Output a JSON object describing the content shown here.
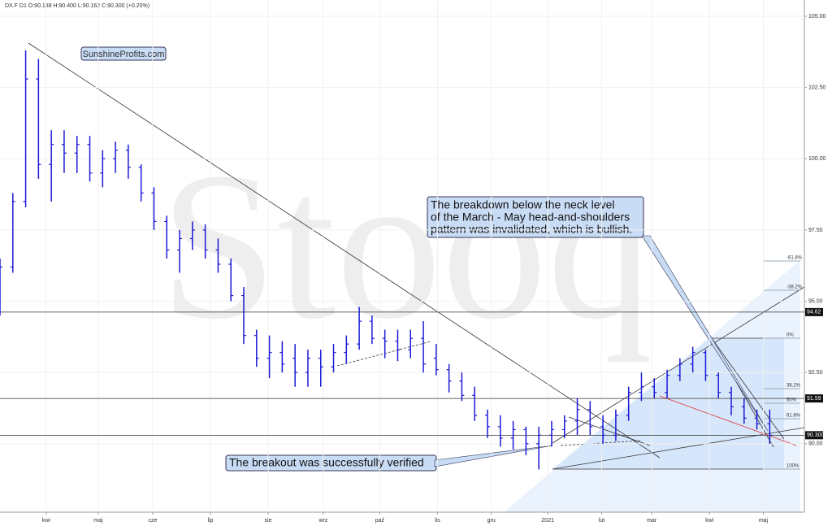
{
  "chart_data": {
    "type": "ohlc",
    "header": "DX.F  D1  O:90.188  H:90.400  L:90.162  C:90.300  (+0.20%)",
    "brand": "SunshineProfits.com",
    "watermark": "Stooq",
    "annotations": [
      "The breakdown below the neck level",
      "of the March - May head-and-shoulders",
      "pattern was invalidated, which is bullish.",
      "The breakout was successfully verified"
    ],
    "fib_labels": [
      "-61.8%",
      "-38.2%",
      "0%",
      "38.2%",
      "50%",
      "61.8%",
      "100%"
    ],
    "price_tags": [
      {
        "value": 94.62,
        "label": "94.62"
      },
      {
        "value": 91.59,
        "label": "91.59"
      },
      {
        "value": 90.3,
        "label": "90.300"
      }
    ],
    "color": "#1a1ad6",
    "x": [
      0,
      1,
      2,
      3,
      4,
      5,
      6,
      7,
      8,
      9,
      10,
      11,
      12,
      13,
      14,
      15,
      16,
      17,
      18,
      19,
      20,
      21,
      22,
      23,
      24,
      25,
      26,
      27,
      28,
      29,
      30,
      31,
      32,
      33,
      34,
      35,
      36,
      37,
      38,
      39,
      40,
      41,
      42,
      43,
      44,
      45,
      46,
      47,
      48,
      49,
      50,
      51,
      52,
      53,
      54,
      55,
      56,
      57,
      58,
      59,
      60
    ],
    "series": [
      {
        "name": "open",
        "values": [
          94.6,
          96.2,
          98.5,
          102.8,
          99.8,
          100.5,
          100.2,
          100.5,
          99.5,
          100,
          100.3,
          99.7,
          98.8,
          97.8,
          96.8,
          97.2,
          97.5,
          96.8,
          96.3,
          95.2,
          93.8,
          93,
          93.2,
          93,
          92.5,
          93,
          92.7,
          93.2,
          93.5,
          94.3,
          93.7,
          93.6,
          93.3,
          93.7,
          93,
          92.6,
          92.2,
          91.7,
          91,
          90.6,
          90.2,
          90.5,
          90,
          90.3,
          90.5,
          90.8,
          91.2,
          90.6,
          90.3,
          91,
          91.8,
          92,
          91.8,
          92.4,
          92.8,
          93.2,
          92.4,
          91.8,
          91.3,
          90.9,
          90.7
        ]
      },
      {
        "name": "high",
        "values": [
          96.5,
          98.8,
          103.8,
          103.5,
          101,
          101,
          100.8,
          100.8,
          100.3,
          100.6,
          100.5,
          99.8,
          99,
          98,
          97.5,
          97.8,
          97.7,
          97.2,
          96.5,
          95.5,
          94,
          93.8,
          93.6,
          93.5,
          93.3,
          93.3,
          93.5,
          93.8,
          94.8,
          94.5,
          94,
          94,
          94,
          94.3,
          93.5,
          92.8,
          92.5,
          92,
          91.2,
          91,
          90.8,
          90.6,
          90.6,
          90.8,
          91,
          91.6,
          91.5,
          91,
          91.2,
          92,
          92.5,
          92.3,
          92.6,
          93,
          93.4,
          93.3,
          92.5,
          92,
          91.6,
          91.2,
          91.2
        ]
      },
      {
        "name": "low",
        "values": [
          94.5,
          96,
          98.3,
          99.3,
          98.5,
          99.5,
          99.5,
          99.2,
          99,
          99.5,
          99.3,
          98.5,
          97.5,
          96.5,
          96,
          96.8,
          96.5,
          96,
          95,
          93.5,
          92.7,
          92.3,
          92.5,
          92,
          92,
          92,
          92.5,
          92.8,
          93.3,
          93.5,
          93,
          92.9,
          93,
          92.5,
          92.4,
          91.8,
          91.5,
          90.8,
          90.2,
          89.9,
          89.8,
          89.6,
          89.1,
          89.9,
          90.2,
          90.3,
          90.3,
          90,
          90.1,
          90.8,
          91.5,
          91.6,
          91.6,
          92.2,
          92.5,
          92.2,
          91.6,
          91,
          90.7,
          90.5,
          90
        ]
      },
      {
        "name": "close",
        "values": [
          96.2,
          98.5,
          102.8,
          99.8,
          100.5,
          100.2,
          100.5,
          99.5,
          100,
          100.3,
          99.7,
          98.8,
          97.8,
          96.8,
          97.2,
          97.5,
          96.8,
          96.3,
          95.2,
          93.8,
          93,
          93.2,
          92.8,
          92.5,
          93,
          92.7,
          93.2,
          93.5,
          94.3,
          93.7,
          93.6,
          93.3,
          93.7,
          92.8,
          92.6,
          92.2,
          91.7,
          91,
          90.6,
          90.2,
          90.5,
          90,
          90.3,
          90.5,
          90.8,
          91.2,
          90.6,
          90.3,
          91,
          91.8,
          92,
          91.8,
          92.4,
          92.8,
          93.2,
          92.4,
          91.8,
          91.3,
          90.9,
          90.7,
          90.3
        ]
      }
    ],
    "xlim": [
      0,
      62.7
    ],
    "xticks": [
      {
        "value": 3.6,
        "label": "kwi"
      },
      {
        "value": 7.66,
        "label": "maj"
      },
      {
        "value": 11.9,
        "label": "cze"
      },
      {
        "value": 16.4,
        "label": "lip"
      },
      {
        "value": 20.9,
        "label": "sie"
      },
      {
        "value": 25.2,
        "label": "wrz"
      },
      {
        "value": 29.6,
        "label": "paź"
      },
      {
        "value": 34.1,
        "label": "lis"
      },
      {
        "value": 38.3,
        "label": "gru"
      },
      {
        "value": 42.7,
        "label": "2021"
      },
      {
        "value": 46.9,
        "label": "lut"
      },
      {
        "value": 50.8,
        "label": "mar"
      },
      {
        "value": 55.3,
        "label": "kwi"
      },
      {
        "value": 59.5,
        "label": "maj"
      }
    ],
    "ylim": [
      87.6,
      105.57
    ],
    "yticks": [
      {
        "value": 90,
        "label": "90.00"
      },
      {
        "value": 92.5,
        "label": "92.50"
      },
      {
        "value": 95,
        "label": "95.00"
      },
      {
        "value": 97.5,
        "label": "97.50"
      },
      {
        "value": 100,
        "label": "100.00"
      },
      {
        "value": 102.5,
        "label": "102.50"
      },
      {
        "value": 105,
        "label": "105.00"
      }
    ],
    "grid": true
  }
}
